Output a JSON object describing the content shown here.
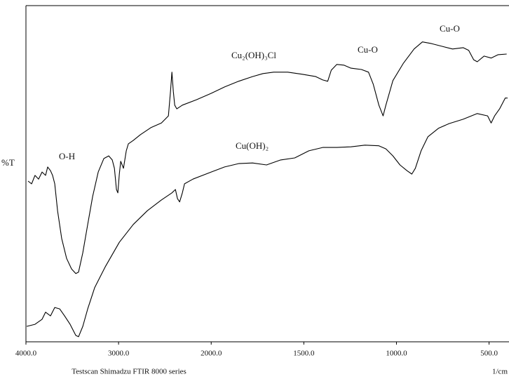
{
  "chart_data": {
    "type": "line",
    "y_label": "%T",
    "x_label": "1/cm",
    "footer": "Testscan Shimadzu FTIR 8000 series",
    "xlim": [
      4000,
      400
    ],
    "xscale": {
      "break": 2000,
      "factor": 2
    },
    "ylim": [
      0,
      100
    ],
    "xticks": [
      {
        "value": 4000,
        "label": "4000.0"
      },
      {
        "value": 3000,
        "label": "3000.0"
      },
      {
        "value": 2000,
        "label": "2000.0"
      },
      {
        "value": 1500,
        "label": "1500.0"
      },
      {
        "value": 1000,
        "label": "1000.0"
      },
      {
        "value": 500,
        "label": "500.0"
      }
    ],
    "annotations": [
      "O-H",
      "Cu₂(OH)₃Cl",
      "Cu-O",
      "Cu-O",
      "Cu(OH)₂"
    ],
    "series": [
      {
        "color": "#000000",
        "x": [
          3977,
          3939,
          3902,
          3864,
          3826,
          3788,
          3765,
          3735,
          3712,
          3689,
          3659,
          3614,
          3561,
          3508,
          3462,
          3432,
          3386,
          3333,
          3280,
          3220,
          3159,
          3106,
          3068,
          3045,
          3023,
          3008,
          2992,
          2977,
          2947,
          2917,
          2894,
          2841,
          2765,
          2652,
          2538,
          2462,
          2439,
          2424,
          2409,
          2394,
          2371,
          2311,
          2159,
          2000,
          1928,
          1852,
          1777,
          1720,
          1663,
          1587,
          1511,
          1436,
          1398,
          1371,
          1352,
          1322,
          1284,
          1246,
          1189,
          1151,
          1125,
          1095,
          1072,
          1057,
          1019,
          962,
          905,
          860,
          811,
          754,
          697,
          640,
          610,
          583,
          564,
          527,
          489,
          451,
          405
        ],
        "values": [
          47.8,
          47.0,
          49.5,
          48.4,
          50.5,
          49.5,
          52.0,
          50.9,
          49.5,
          47.0,
          39.0,
          30.7,
          24.8,
          21.7,
          20.3,
          20.7,
          26.5,
          34.9,
          43.2,
          50.5,
          54.5,
          55.3,
          54.1,
          51.6,
          45.3,
          44.3,
          49.9,
          53.7,
          51.6,
          56.8,
          58.9,
          59.9,
          61.6,
          63.7,
          65.1,
          67.2,
          74.5,
          80.2,
          74.5,
          70.4,
          69.3,
          70.4,
          72.0,
          73.9,
          75.8,
          77.5,
          78.9,
          79.8,
          80.2,
          80.2,
          79.6,
          78.9,
          77.9,
          77.5,
          80.8,
          82.5,
          82.3,
          81.4,
          81.0,
          80.2,
          76.6,
          70.4,
          67.2,
          70.4,
          77.7,
          82.9,
          87.1,
          89.2,
          88.7,
          87.9,
          87.1,
          87.5,
          86.7,
          83.9,
          83.3,
          85.0,
          84.4,
          85.4,
          85.6
        ]
      },
      {
        "color": "#000000",
        "x": [
          3992,
          3902,
          3826,
          3788,
          3735,
          3689,
          3636,
          3583,
          3523,
          3462,
          3432,
          3386,
          3333,
          3258,
          3144,
          2992,
          2841,
          2689,
          2538,
          2424,
          2386,
          2364,
          2341,
          2311,
          2288,
          2197,
          2000,
          1928,
          1852,
          1777,
          1701,
          1625,
          1549,
          1473,
          1398,
          1322,
          1246,
          1170,
          1095,
          1057,
          1019,
          981,
          943,
          917,
          898,
          867,
          830,
          773,
          716,
          640,
          564,
          508,
          489,
          470,
          443,
          413,
          400
        ],
        "values": [
          4.6,
          5.2,
          6.7,
          8.8,
          7.7,
          10.2,
          9.8,
          7.7,
          5.2,
          1.9,
          1.5,
          4.6,
          9.8,
          16.1,
          22.3,
          29.6,
          34.9,
          39.0,
          42.2,
          44.3,
          45.3,
          42.6,
          41.6,
          44.3,
          47.0,
          48.4,
          50.5,
          52.0,
          53.0,
          53.2,
          52.6,
          54.1,
          54.7,
          56.8,
          57.8,
          57.8,
          58.0,
          58.5,
          58.3,
          57.4,
          55.3,
          52.6,
          50.9,
          49.9,
          51.6,
          56.8,
          61.0,
          63.5,
          64.9,
          66.2,
          67.9,
          67.2,
          65.1,
          67.2,
          69.3,
          72.5,
          72.5
        ]
      }
    ]
  }
}
